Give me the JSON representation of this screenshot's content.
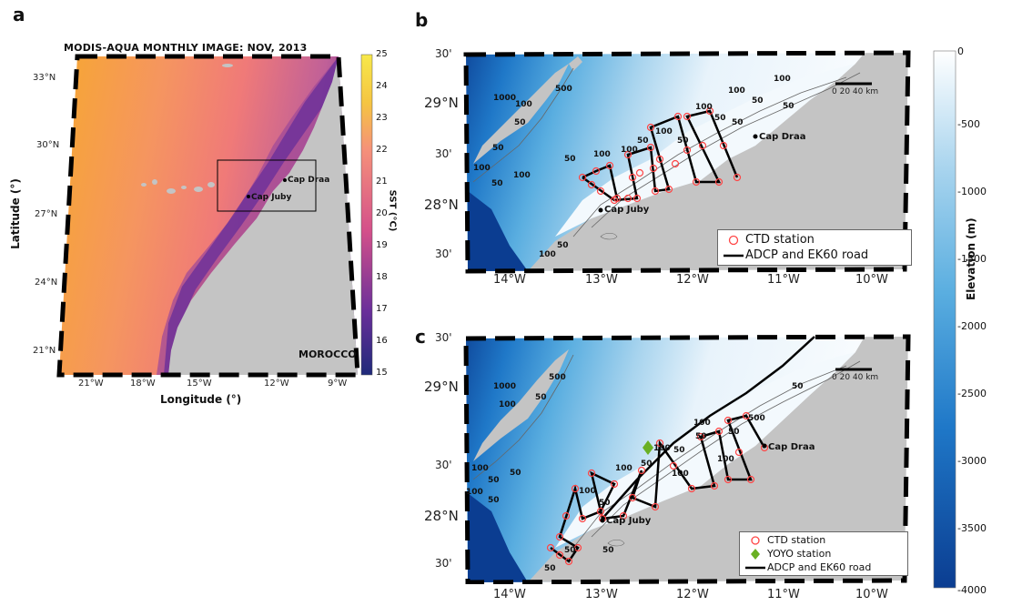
{
  "panel_a": {
    "letter": "a",
    "title": "MODIS-AQUA MONTHLY IMAGE: NOV, 2013",
    "lat_ticks": [
      "33°N",
      "30°N",
      "27°N",
      "24°N",
      "21°N"
    ],
    "lon_ticks": [
      "21°W",
      "18°W",
      "15°W",
      "12°W",
      "9°W"
    ],
    "xlabel": "Longitude (°)",
    "ylabel": "Latitude (°)",
    "country_label": "MOROCCO",
    "place_labels": [
      "Cap Draa",
      "Cap Juby"
    ],
    "colorbar": {
      "label": "SST (°C)",
      "ticks": [
        "25",
        "24",
        "23",
        "22",
        "21",
        "20",
        "19",
        "18",
        "17",
        "16",
        "15"
      ],
      "range": [
        15,
        25
      ],
      "colors": [
        "#1f2a7a",
        "#7a3aa0",
        "#d4508a",
        "#f5907a",
        "#f5c542",
        "#f7e84a"
      ]
    }
  },
  "panel_b": {
    "letter": "b",
    "lat_ticks": [
      "30'",
      "29°N",
      "30'",
      "28°N",
      "30'"
    ],
    "lon_ticks": [
      "14°W",
      "13°W",
      "12°W",
      "11°W",
      "10°W"
    ],
    "place_labels": [
      "Cap Draa",
      "Cap Juby"
    ],
    "scale_bar": "0  20 40 km",
    "contour_labels": [
      "1000",
      "500",
      "100",
      "50",
      "50",
      "100",
      "50",
      "100",
      "50",
      "100",
      "100",
      "100",
      "50",
      "50",
      "100",
      "50",
      "50",
      "100",
      "100",
      "50",
      "100",
      "50",
      "50"
    ],
    "legend": [
      "CTD station",
      "ADCP and EK60 road"
    ]
  },
  "panel_c": {
    "letter": "c",
    "lat_ticks": [
      "30'",
      "29°N",
      "30'",
      "28°N",
      "30'"
    ],
    "lon_ticks": [
      "14°W",
      "13°W",
      "12°W",
      "11°W",
      "10°W"
    ],
    "place_labels": [
      "Cap Draa",
      "Cap Juby"
    ],
    "scale_bar": "0  20 40 km",
    "contour_labels": [
      "1000",
      "500",
      "50",
      "100",
      "100",
      "50",
      "100",
      "50",
      "100",
      "100",
      "500",
      "50",
      "50",
      "100",
      "50",
      "50",
      "100",
      "50",
      "100",
      "50",
      "50",
      "50",
      "100",
      "50",
      "50"
    ],
    "legend": [
      "CTD station",
      "YOYO station",
      "ADCP and EK60 road"
    ]
  },
  "elevation_colorbar": {
    "label": "Elevation (m)",
    "ticks": [
      "0",
      "-500",
      "-1000",
      "-1500",
      "-2000",
      "-2500",
      "-3000",
      "-3500",
      "-4000"
    ],
    "range": [
      -4000,
      0
    ],
    "colors": [
      "#0b3d91",
      "#1f78c8",
      "#5aaee0",
      "#a8d4ee",
      "#ffffff"
    ]
  },
  "colors": {
    "land": "#c4c4c4",
    "station": "#ff4444",
    "yoyo": "#6ab023",
    "track": "#000000"
  }
}
